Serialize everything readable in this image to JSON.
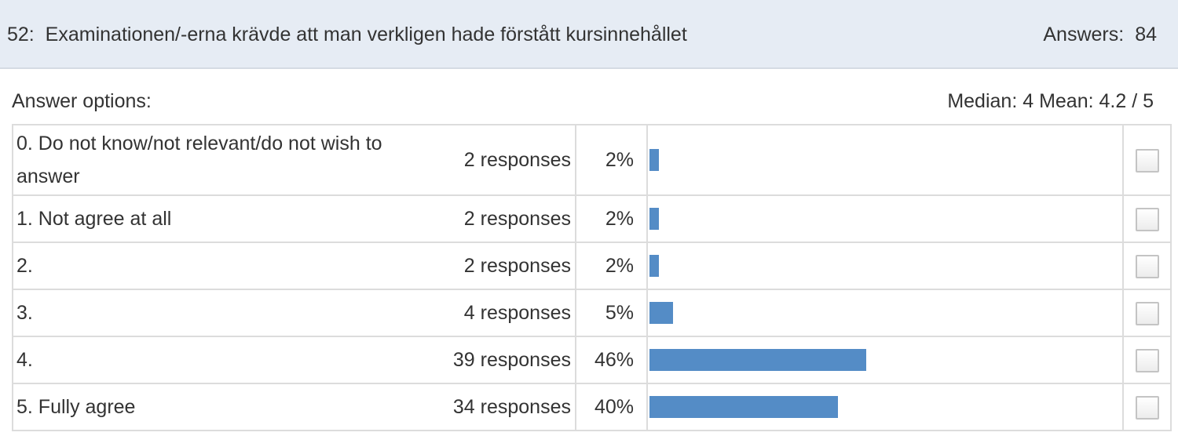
{
  "question": {
    "number": "52:",
    "title": "Examinationen/-erna krävde att man verkligen hade förstått kursinnehållet",
    "answers_label": "Answers:",
    "answers_count": "84"
  },
  "options_label": "Answer options:",
  "stats_text": "Median: 4 Mean: 4.2 / 5",
  "rows": [
    {
      "label": "0.  Do not know/not relevant/do not wish to answer",
      "count": "2 responses",
      "pct": "2%",
      "value": 2
    },
    {
      "label": "1.  Not agree at all",
      "count": "2 responses",
      "pct": "2%",
      "value": 2
    },
    {
      "label": "2.",
      "count": "2 responses",
      "pct": "2%",
      "value": 2
    },
    {
      "label": "3.",
      "count": "4 responses",
      "pct": "5%",
      "value": 5
    },
    {
      "label": "4.",
      "count": "39 responses",
      "pct": "46%",
      "value": 46
    },
    {
      "label": "5.  Fully agree",
      "count": "34 responses",
      "pct": "40%",
      "value": 40
    }
  ],
  "colors": {
    "bar": "#548cc6",
    "header_bg": "#e6ecf4"
  }
}
